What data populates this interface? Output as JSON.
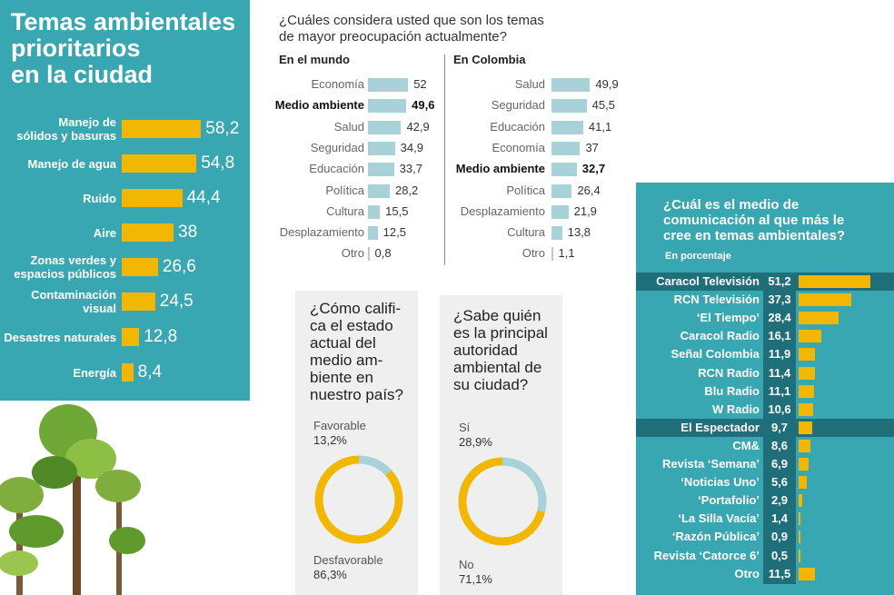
{
  "colors": {
    "teal": "#39a7b1",
    "dark_teal": "#1f6f7a",
    "yellow": "#f2b705",
    "light_bar": "#a8d2d8",
    "light_blue": "#a8d2d8"
  },
  "left": {
    "title_lines": [
      "Temas ambientales",
      "prioritarios",
      "en la ciudad"
    ]
  },
  "mid": {
    "question": [
      "¿Cuáles considera usted que son los temas",
      "de mayor preocupación actualmente?"
    ],
    "world_head": "En el mundo",
    "colombia_head": "En Colombia"
  },
  "donut1": {
    "question": [
      "¿Cómo califi-",
      "ca el estado",
      "actual del",
      "medio am-",
      "biente en",
      "nuestro país?"
    ],
    "label_a": "Favorable",
    "value_a": "13,2%",
    "label_b": "Desfavorable",
    "value_b": "86,3%"
  },
  "donut2": {
    "question": [
      "¿Sabe quién",
      "es la principal",
      "autoridad",
      "ambiental de",
      "su ciudad?"
    ],
    "label_a": "Sí",
    "value_a": "28,9%",
    "label_b": "No",
    "value_b": "71,1%"
  },
  "right": {
    "title_lines": [
      "¿Cuál es el medio de",
      "comunicación al que más le",
      "cree en temas ambientales?"
    ],
    "subtitle": "En porcentaje"
  },
  "chart_data": [
    {
      "type": "bar",
      "title": "Temas ambientales prioritarios en la ciudad",
      "categories": [
        "Manejo de sólidos y basuras",
        "Manejo de agua",
        "Ruido",
        "Aire",
        "Zonas verdes y espacios públicos",
        "Contaminación visual",
        "Desastres naturales",
        "Energía"
      ],
      "label_lines": [
        [
          "Manejo de",
          "sólidos y basuras"
        ],
        [
          "Manejo de agua"
        ],
        [
          "Ruido"
        ],
        [
          "Aire"
        ],
        [
          "Zonas verdes y",
          "espacios públicos"
        ],
        [
          "Contaminación",
          "visual"
        ],
        [
          "Desastres naturales"
        ],
        [
          "Energía"
        ]
      ],
      "values": [
        58.2,
        54.8,
        44.4,
        38,
        26.6,
        24.5,
        12.8,
        8.4
      ],
      "value_labels": [
        "58,2",
        "54,8",
        "44,4",
        "38",
        "26,6",
        "24,5",
        "12,8",
        "8,4"
      ]
    },
    {
      "type": "bar",
      "title": "En el mundo",
      "categories": [
        "Economía",
        "Medio ambiente",
        "Salud",
        "Seguridad",
        "Educación",
        "Política",
        "Cultura",
        "Desplazamiento",
        "Otro"
      ],
      "values": [
        52,
        49.6,
        42.9,
        34.9,
        33.7,
        28.2,
        15.5,
        12.5,
        0.8
      ],
      "value_labels": [
        "52",
        "49,6",
        "42,9",
        "34,9",
        "33,7",
        "28,2",
        "15,5",
        "12,5",
        "0,8"
      ],
      "highlight": "Medio ambiente"
    },
    {
      "type": "bar",
      "title": "En Colombia",
      "categories": [
        "Salud",
        "Seguridad",
        "Educación",
        "Economía",
        "Medio ambiente",
        "Política",
        "Desplazamiento",
        "Cultura",
        "Otro"
      ],
      "values": [
        49.9,
        45.5,
        41.1,
        37,
        32.7,
        26.4,
        21.9,
        13.8,
        1.1
      ],
      "value_labels": [
        "49,9",
        "45,5",
        "41,1",
        "37",
        "32,7",
        "26,4",
        "21,9",
        "13,8",
        "1,1"
      ],
      "highlight": "Medio ambiente"
    },
    {
      "type": "pie",
      "categories": [
        "Favorable",
        "Desfavorable"
      ],
      "values": [
        13.2,
        86.3
      ]
    },
    {
      "type": "pie",
      "categories": [
        "Sí",
        "No"
      ],
      "values": [
        28.9,
        71.1
      ]
    },
    {
      "type": "bar",
      "title": "¿Cuál es el medio de comunicación al que más le cree en temas ambientales?",
      "categories": [
        "Caracol Televisión",
        "RCN Televisión",
        "‘El Tiempo’",
        "Caracol Radio",
        "Señal Colombia",
        "RCN Radio",
        "Blu Radio",
        "W Radio",
        "El Espectador",
        "CM&",
        "Revista ‘Semana’",
        "‘Noticias Uno’",
        "‘Portafolio’",
        "‘La Silla Vacía’",
        "‘Razón Pública’",
        "Revista ‘Catorce 6’",
        "Otro"
      ],
      "values": [
        51.2,
        37.3,
        28.4,
        16.1,
        11.9,
        11.4,
        11.1,
        10.6,
        9.7,
        8.6,
        6.9,
        5.6,
        2.9,
        1.4,
        0.9,
        0.5,
        11.5
      ],
      "value_labels": [
        "51,2",
        "37,3",
        "28,4",
        "16,1",
        "11,9",
        "11,4",
        "11,1",
        "10,6",
        "9,7",
        "8,6",
        "6,9",
        "5,6",
        "2,9",
        "1,4",
        "0,9",
        "0,5",
        "11,5"
      ],
      "highlight": [
        "Caracol Televisión",
        "El Espectador"
      ]
    }
  ]
}
